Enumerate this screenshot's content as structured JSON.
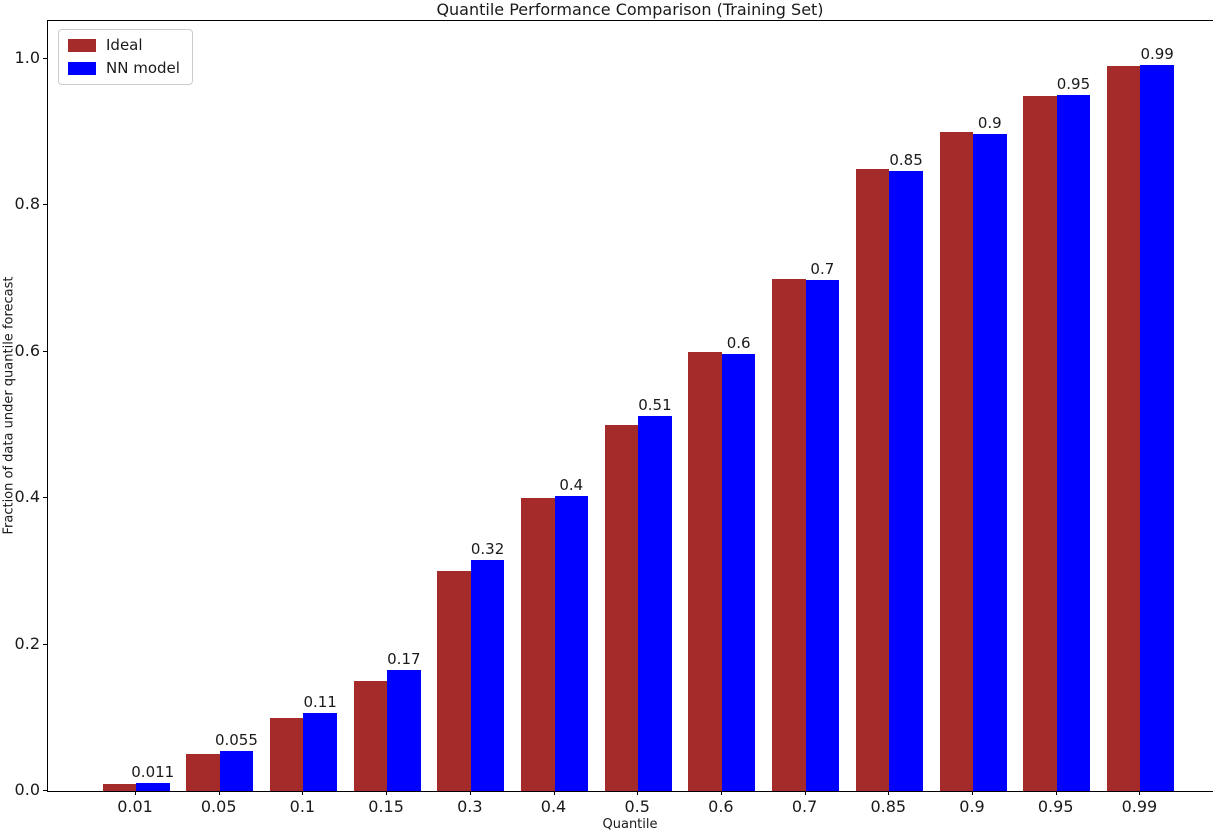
{
  "chart_data": {
    "type": "bar",
    "title": "Quantile Performance Comparison (Training Set)",
    "xlabel": "Quantile",
    "ylabel": "Fraction of data under quantile forecast",
    "categories": [
      "0.01",
      "0.05",
      "0.1",
      "0.15",
      "0.3",
      "0.4",
      "0.5",
      "0.6",
      "0.7",
      "0.85",
      "0.9",
      "0.95",
      "0.99"
    ],
    "series": [
      {
        "name": "Ideal",
        "color": "#A52A2A",
        "values": [
          0.01,
          0.05,
          0.1,
          0.15,
          0.3,
          0.4,
          0.5,
          0.6,
          0.7,
          0.85,
          0.9,
          0.95,
          0.99
        ]
      },
      {
        "name": "NN model",
        "color": "#0000FF",
        "values": [
          0.011,
          0.055,
          0.107,
          0.165,
          0.316,
          0.403,
          0.512,
          0.597,
          0.698,
          0.847,
          0.897,
          0.951,
          0.992
        ]
      }
    ],
    "bar_labels": [
      "0.011",
      "0.055",
      "0.11",
      "0.17",
      "0.32",
      "0.4",
      "0.51",
      "0.6",
      "0.7",
      "0.85",
      "0.9",
      "0.95",
      "0.99"
    ],
    "bar_labels_on_series": "NN model",
    "y_ticks": [
      "0.0",
      "0.2",
      "0.4",
      "0.6",
      "0.8",
      "1.0"
    ],
    "ylim": [
      0,
      1.052
    ],
    "grid": false,
    "legend_position": "upper-left",
    "text_color": "#1a1a1a",
    "spine_color": "#000000"
  }
}
